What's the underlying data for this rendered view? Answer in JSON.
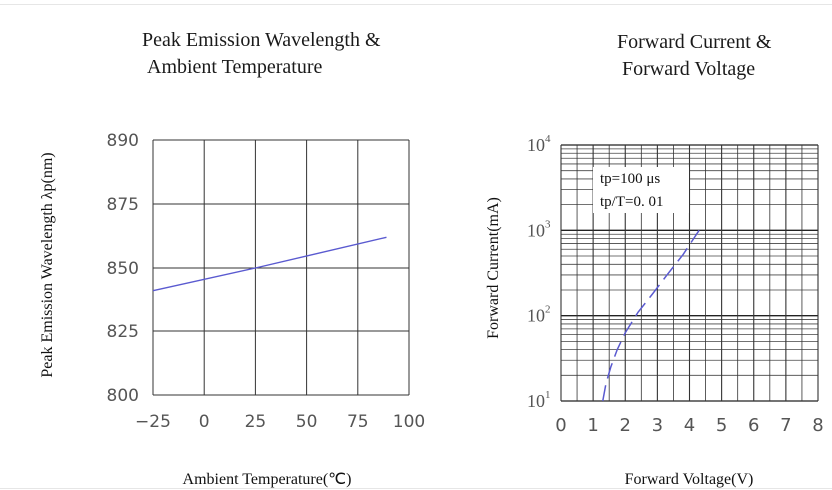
{
  "chart_data": [
    {
      "type": "line",
      "title_lines": [
        "Peak Emission Wavelength  &",
        "Ambient Temperature"
      ],
      "xlabel": "Ambient Temperature(℃)",
      "ylabel": "Peak Emission Wavelength λp(nm)",
      "xlim": [
        -25,
        100
      ],
      "ylim": [
        800,
        890
      ],
      "xticks": [
        -25,
        0,
        25,
        50,
        75,
        100
      ],
      "yticks": [
        800,
        825,
        850,
        875,
        890
      ],
      "x_tick_labels": [
        "−25",
        "0",
        "25",
        "50",
        "75",
        "100"
      ],
      "y_tick_labels": [
        "800",
        "825",
        "850",
        "875",
        "890"
      ],
      "grid": true,
      "line_color": "#5a5ad0",
      "series": [
        {
          "x": [
            -25,
            25,
            89
          ],
          "y": [
            841,
            850,
            862
          ]
        }
      ]
    },
    {
      "type": "line",
      "title_lines": [
        "Forward Current  &",
        "Forward Voltage"
      ],
      "xlabel": "Forward Voltage(V)",
      "ylabel": "Forward Current(mA)",
      "xlim": [
        0,
        8
      ],
      "ylim": [
        10,
        10000
      ],
      "y_scale": "log",
      "xticks": [
        0,
        1,
        2,
        3,
        4,
        5,
        6,
        7,
        8
      ],
      "x_tick_labels": [
        "0",
        "1",
        "2",
        "3",
        "4",
        "5",
        "6",
        "7",
        "8"
      ],
      "y_tick_labels": [
        {
          "base": "10",
          "exp": "1"
        },
        {
          "base": "10",
          "exp": "2"
        },
        {
          "base": "10",
          "exp": "3"
        },
        {
          "base": "10",
          "exp": "4"
        }
      ],
      "grid": true,
      "annotations": [
        "tp=100  μs",
        "tp/T=0. 01"
      ],
      "line_color": "#5a5ad0",
      "line_style": "dashed",
      "series": [
        {
          "x": [
            1.3,
            1.4,
            1.55,
            1.75,
            2.0,
            2.4,
            2.85,
            3.3,
            3.8,
            4.3
          ],
          "y": [
            10,
            16,
            25,
            40,
            63,
            110,
            180,
            300,
            520,
            1000
          ]
        }
      ]
    }
  ]
}
